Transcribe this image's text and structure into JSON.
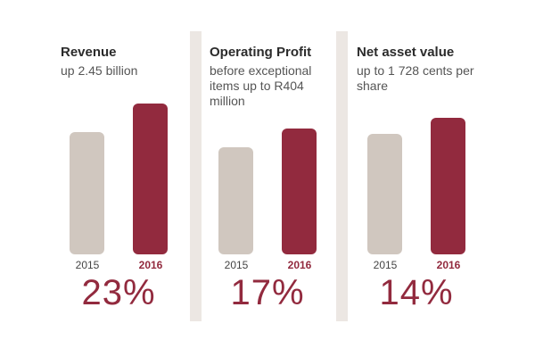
{
  "colors": {
    "prev": "#d0c7bf",
    "current": "#922a3e",
    "divider": "#ece7e3"
  },
  "chart_data": [
    {
      "type": "bar",
      "title": "Revenue",
      "subtitle": "up 2.45 billion",
      "categories": [
        "2015",
        "2016"
      ],
      "values": [
        0.81,
        1.0
      ],
      "change": "23%"
    },
    {
      "type": "bar",
      "title": "Operating Profit",
      "subtitle": "before exceptional items up to R404 million",
      "categories": [
        "2015",
        "2016"
      ],
      "values": [
        0.85,
        1.0
      ],
      "change": "17%"
    },
    {
      "type": "bar",
      "title": "Net asset value",
      "subtitle": "up to 1 728 cents per share",
      "categories": [
        "2015",
        "2016"
      ],
      "values": [
        0.88,
        1.0
      ],
      "change": "14%"
    }
  ]
}
